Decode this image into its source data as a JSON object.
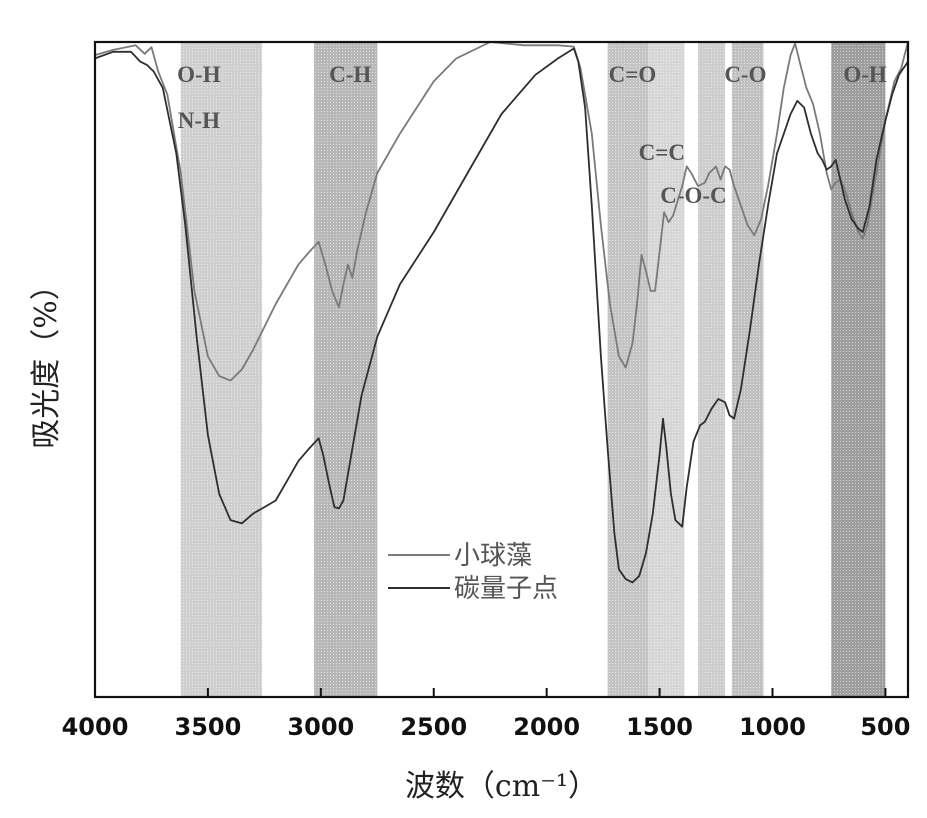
{
  "chart_data": {
    "type": "line",
    "xlabel": "波数（cm⁻¹）",
    "ylabel": "吸光度（%）",
    "xlim": [
      4000,
      400
    ],
    "ylim": [
      0,
      100
    ],
    "x_ticks": [
      4000,
      3500,
      3000,
      2500,
      2000,
      1500,
      1000,
      500
    ],
    "grid": false,
    "legend_position": "center",
    "bands": [
      {
        "from": 3620,
        "to": 3260,
        "shade": "#cfcfcf",
        "labels": [
          "O-H",
          "N-H"
        ]
      },
      {
        "from": 3030,
        "to": 2750,
        "shade": "#b7b7b7",
        "labels": [
          "C-H"
        ]
      },
      {
        "from": 1730,
        "to": 1550,
        "shade": "#c4c4c4",
        "labels": [
          "C=O"
        ]
      },
      {
        "from": 1550,
        "to": 1390,
        "shade": "#d6d6d6",
        "labels": [
          "C=C"
        ]
      },
      {
        "from": 1330,
        "to": 1210,
        "shade": "#cdcdcd",
        "labels": [
          "C-O-C"
        ]
      },
      {
        "from": 1180,
        "to": 1040,
        "shade": "#c0c0c0",
        "labels": [
          "C-O"
        ]
      },
      {
        "from": 740,
        "to": 500,
        "shade": "#9e9e9e",
        "labels": [
          "O-H"
        ]
      }
    ],
    "series": [
      {
        "name": "小球藻",
        "color": "#7a7a7a",
        "points": [
          [
            4000,
            98
          ],
          [
            3920,
            98.8
          ],
          [
            3820,
            99.5
          ],
          [
            3780,
            98.2
          ],
          [
            3750,
            99.2
          ],
          [
            3720,
            95.5
          ],
          [
            3680,
            92
          ],
          [
            3620,
            80
          ],
          [
            3560,
            62
          ],
          [
            3500,
            52
          ],
          [
            3450,
            49
          ],
          [
            3400,
            48.3
          ],
          [
            3350,
            50
          ],
          [
            3300,
            53
          ],
          [
            3200,
            60
          ],
          [
            3100,
            66
          ],
          [
            3050,
            68
          ],
          [
            3010,
            69.5
          ],
          [
            2980,
            66
          ],
          [
            2950,
            62
          ],
          [
            2920,
            59.5
          ],
          [
            2900,
            63
          ],
          [
            2880,
            66
          ],
          [
            2860,
            64
          ],
          [
            2840,
            68
          ],
          [
            2800,
            74
          ],
          [
            2750,
            80
          ],
          [
            2650,
            86
          ],
          [
            2500,
            94
          ],
          [
            2400,
            97.5
          ],
          [
            2250,
            100
          ],
          [
            2100,
            99.5
          ],
          [
            1950,
            99.5
          ],
          [
            1880,
            99.3
          ],
          [
            1850,
            96
          ],
          [
            1800,
            86
          ],
          [
            1760,
            72
          ],
          [
            1720,
            60
          ],
          [
            1680,
            52
          ],
          [
            1650,
            50.3
          ],
          [
            1620,
            54
          ],
          [
            1600,
            60
          ],
          [
            1580,
            67.5
          ],
          [
            1560,
            65
          ],
          [
            1540,
            62
          ],
          [
            1520,
            62
          ],
          [
            1500,
            68
          ],
          [
            1480,
            74
          ],
          [
            1460,
            72.5
          ],
          [
            1440,
            73.5
          ],
          [
            1400,
            78
          ],
          [
            1380,
            81
          ],
          [
            1360,
            80
          ],
          [
            1330,
            78
          ],
          [
            1300,
            78.5
          ],
          [
            1280,
            80
          ],
          [
            1250,
            81
          ],
          [
            1230,
            79
          ],
          [
            1210,
            81
          ],
          [
            1190,
            80.5
          ],
          [
            1170,
            78
          ],
          [
            1140,
            75
          ],
          [
            1110,
            72
          ],
          [
            1080,
            70.5
          ],
          [
            1050,
            73
          ],
          [
            1020,
            78
          ],
          [
            980,
            86
          ],
          [
            950,
            93
          ],
          [
            920,
            98
          ],
          [
            900,
            99.8
          ],
          [
            880,
            97
          ],
          [
            850,
            93
          ],
          [
            820,
            90.5
          ],
          [
            790,
            86
          ],
          [
            760,
            80
          ],
          [
            740,
            77.5
          ],
          [
            720,
            78.5
          ],
          [
            700,
            79
          ],
          [
            680,
            77.5
          ],
          [
            650,
            74
          ],
          [
            620,
            71
          ],
          [
            600,
            70
          ],
          [
            580,
            72
          ],
          [
            550,
            78
          ],
          [
            500,
            88
          ],
          [
            460,
            94
          ],
          [
            430,
            96
          ],
          [
            400,
            100
          ]
        ]
      },
      {
        "name": "碳量子点",
        "color": "#2e2e2e",
        "points": [
          [
            4000,
            97.5
          ],
          [
            3920,
            98.5
          ],
          [
            3840,
            98.5
          ],
          [
            3800,
            97
          ],
          [
            3770,
            96.5
          ],
          [
            3740,
            95.5
          ],
          [
            3700,
            93
          ],
          [
            3640,
            83
          ],
          [
            3600,
            72
          ],
          [
            3550,
            55
          ],
          [
            3500,
            40
          ],
          [
            3450,
            31
          ],
          [
            3400,
            27
          ],
          [
            3350,
            26.5
          ],
          [
            3300,
            28
          ],
          [
            3250,
            29
          ],
          [
            3200,
            30
          ],
          [
            3150,
            33
          ],
          [
            3100,
            36
          ],
          [
            3050,
            38
          ],
          [
            3010,
            39.5
          ],
          [
            2990,
            37
          ],
          [
            2960,
            32
          ],
          [
            2940,
            29
          ],
          [
            2920,
            28.8
          ],
          [
            2900,
            30
          ],
          [
            2870,
            36
          ],
          [
            2820,
            46
          ],
          [
            2750,
            55
          ],
          [
            2650,
            63
          ],
          [
            2500,
            71
          ],
          [
            2350,
            80
          ],
          [
            2200,
            89
          ],
          [
            2050,
            95
          ],
          [
            1950,
            97.5
          ],
          [
            1880,
            99
          ],
          [
            1860,
            97
          ],
          [
            1830,
            90
          ],
          [
            1800,
            75
          ],
          [
            1760,
            52
          ],
          [
            1730,
            38
          ],
          [
            1700,
            25
          ],
          [
            1680,
            19.5
          ],
          [
            1650,
            18
          ],
          [
            1620,
            17.5
          ],
          [
            1590,
            18.5
          ],
          [
            1560,
            22
          ],
          [
            1530,
            28
          ],
          [
            1500,
            37
          ],
          [
            1485,
            42.5
          ],
          [
            1470,
            38
          ],
          [
            1450,
            31
          ],
          [
            1430,
            27
          ],
          [
            1400,
            26
          ],
          [
            1380,
            32
          ],
          [
            1350,
            39
          ],
          [
            1320,
            41.5
          ],
          [
            1300,
            42
          ],
          [
            1270,
            44
          ],
          [
            1240,
            45.5
          ],
          [
            1210,
            45
          ],
          [
            1190,
            43
          ],
          [
            1170,
            42.5
          ],
          [
            1140,
            47
          ],
          [
            1100,
            56
          ],
          [
            1060,
            66
          ],
          [
            1020,
            75
          ],
          [
            980,
            83
          ],
          [
            950,
            86
          ],
          [
            920,
            89
          ],
          [
            890,
            91
          ],
          [
            860,
            90
          ],
          [
            830,
            86
          ],
          [
            800,
            83
          ],
          [
            780,
            82
          ],
          [
            760,
            80.5
          ],
          [
            740,
            81
          ],
          [
            720,
            82
          ],
          [
            700,
            79
          ],
          [
            680,
            76
          ],
          [
            650,
            73
          ],
          [
            620,
            71.5
          ],
          [
            600,
            71
          ],
          [
            570,
            75
          ],
          [
            540,
            82
          ],
          [
            500,
            88
          ],
          [
            470,
            92
          ],
          [
            440,
            95
          ],
          [
            400,
            97
          ]
        ]
      }
    ]
  }
}
